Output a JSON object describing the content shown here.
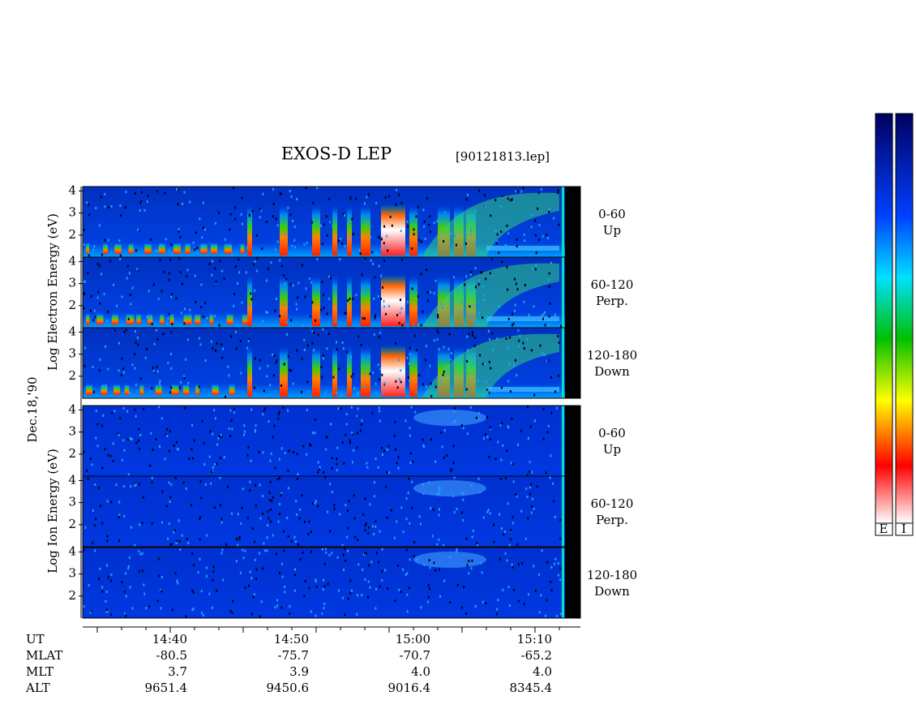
{
  "title": "EXOS-D LEP",
  "file": "[90121813.lep]",
  "date_label": "Dec.18,'90",
  "electron_ylabel": "Log  Electron  Energy (eV)",
  "ion_ylabel": "Log  Ion  Energy (eV)",
  "ylim": [
    1,
    4.2
  ],
  "yticks": [
    2,
    3,
    4
  ],
  "electron_panels": [
    {
      "angle": "0-60",
      "direction": "Up"
    },
    {
      "angle": "60-120",
      "direction": "Perp."
    },
    {
      "angle": "120-180",
      "direction": "Down"
    }
  ],
  "ion_panels": [
    {
      "angle": "0-60",
      "direction": "Up"
    },
    {
      "angle": "60-120",
      "direction": "Perp."
    },
    {
      "angle": "120-180",
      "direction": "Down"
    }
  ],
  "orbit_table": {
    "row_labels": [
      "UT",
      "MLAT",
      "MLT",
      "ALT"
    ],
    "columns": [
      [
        "14:40",
        "-80.5",
        "3.7",
        "9651.4"
      ],
      [
        "14:50",
        "-75.7",
        "3.9",
        "9450.6"
      ],
      [
        "15:00",
        "-70.7",
        "4.0",
        "9016.4"
      ],
      [
        "15:10",
        "-65.2",
        "4.0",
        "8345.4"
      ]
    ]
  },
  "colorbar_labels": [
    "E",
    "I"
  ]
}
